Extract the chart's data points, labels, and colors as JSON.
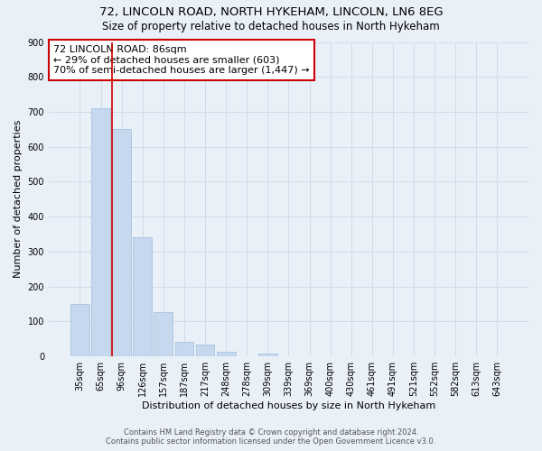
{
  "title": "72, LINCOLN ROAD, NORTH HYKEHAM, LINCOLN, LN6 8EG",
  "subtitle": "Size of property relative to detached houses in North Hykeham",
  "xlabel": "Distribution of detached houses by size in North Hykeham",
  "ylabel": "Number of detached properties",
  "categories": [
    "35sqm",
    "65sqm",
    "96sqm",
    "126sqm",
    "157sqm",
    "187sqm",
    "217sqm",
    "248sqm",
    "278sqm",
    "309sqm",
    "339sqm",
    "369sqm",
    "400sqm",
    "430sqm",
    "461sqm",
    "491sqm",
    "521sqm",
    "552sqm",
    "582sqm",
    "613sqm",
    "643sqm"
  ],
  "values": [
    150,
    710,
    650,
    340,
    128,
    42,
    35,
    12,
    0,
    8,
    0,
    0,
    0,
    0,
    0,
    0,
    0,
    0,
    0,
    0,
    0
  ],
  "bar_color": "#c5d8ed",
  "bar_edge_color": "#a8c4df",
  "highlight_bar_index": 2,
  "highlight_line_color": "#cc0000",
  "ylim": [
    0,
    900
  ],
  "yticks": [
    0,
    100,
    200,
    300,
    400,
    500,
    600,
    700,
    800,
    900
  ],
  "annotation_text": "72 LINCOLN ROAD: 86sqm\n← 29% of detached houses are smaller (603)\n70% of semi-detached houses are larger (1,447) →",
  "annotation_box_color": "#ffffff",
  "annotation_box_edge_color": "#cc0000",
  "footer_line1": "Contains HM Land Registry data © Crown copyright and database right 2024.",
  "footer_line2": "Contains public sector information licensed under the Open Government Licence v3.0.",
  "background_color": "#eaf0f8",
  "plot_background_color": "#eaf0f8",
  "grid_color": "#d0dce8",
  "title_fontsize": 9.5,
  "subtitle_fontsize": 8.5,
  "axis_label_fontsize": 8,
  "tick_fontsize": 7,
  "annotation_fontsize": 8,
  "footer_fontsize": 6
}
